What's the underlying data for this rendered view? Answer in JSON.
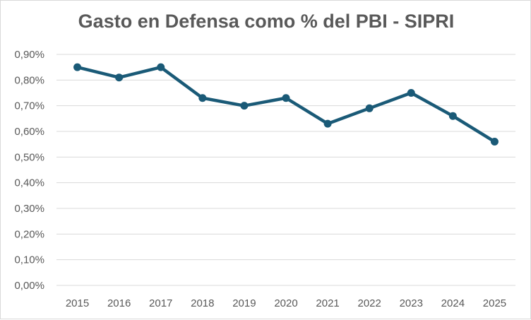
{
  "chart_data": {
    "type": "line",
    "title": "Gasto en Defensa como % del PBI - SIPRI",
    "xlabel": "",
    "ylabel": "",
    "categories": [
      "2015",
      "2016",
      "2017",
      "2018",
      "2019",
      "2020",
      "2021",
      "2022",
      "2023",
      "2024",
      "2025"
    ],
    "series": [
      {
        "values": [
          0.85,
          0.81,
          0.85,
          0.73,
          0.7,
          0.73,
          0.63,
          0.69,
          0.75,
          0.66,
          0.56
        ],
        "color": "#1a5a77"
      }
    ],
    "ylim": [
      0,
      0.9
    ],
    "yticks": [
      0.0,
      0.1,
      0.2,
      0.3,
      0.4,
      0.5,
      0.6,
      0.7,
      0.8,
      0.9
    ],
    "ytick_labels": [
      "0,00%",
      "0,10%",
      "0,20%",
      "0,30%",
      "0,40%",
      "0,50%",
      "0,60%",
      "0,70%",
      "0,80%",
      "0,90%"
    ],
    "grid": true,
    "gridline_color": "#d9d9d9",
    "legend": "none"
  }
}
